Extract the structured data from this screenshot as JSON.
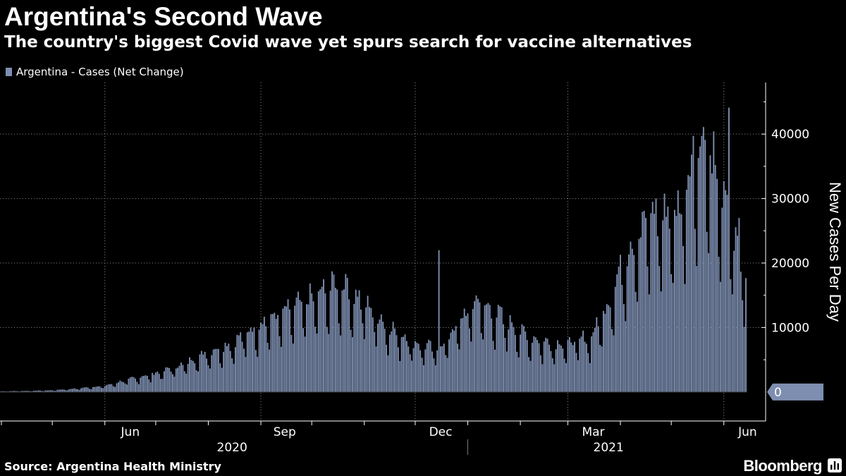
{
  "header": {
    "title": "Argentina's Second Wave",
    "subtitle": "The country's biggest Covid wave yet spurs search for vaccine alternatives"
  },
  "footer": {
    "source": "Source: Argentina Health Ministry",
    "brand": "Bloomberg",
    "brand_icon": "bloomberg-terminal-icon"
  },
  "colors": {
    "background": "#000000",
    "bar": "#7D8EB0",
    "grid": "#8a8a8a",
    "axis": "#ffffff",
    "text": "#ffffff"
  },
  "chart_data": {
    "type": "bar",
    "title": "Argentina's Second Wave",
    "subtitle": "The country's biggest Covid wave yet spurs search for vaccine alternatives",
    "xlabel": "",
    "ylabel": "New Cases Per Day",
    "ylim": [
      -4500,
      48000
    ],
    "yticks": [
      40000,
      30000,
      20000,
      10000
    ],
    "current_value_label": "0",
    "grid": "dotted vertical and horizontal",
    "legend_position": "top-left",
    "x_month_ticks": [
      "Jun",
      "Sep",
      "Dec",
      "Mar",
      "Jun"
    ],
    "x_year_labels": [
      "2020",
      "2021"
    ],
    "series": [
      {
        "name": "Argentina - Cases (Net Change)",
        "color": "#7D8EB0",
        "x_start": "2020-04-01",
        "x_end": "2021-06-14",
        "anchors": [
          [
            "2020-04-01",
            100
          ],
          [
            "2020-04-15",
            150
          ],
          [
            "2020-05-01",
            250
          ],
          [
            "2020-05-15",
            500
          ],
          [
            "2020-06-01",
            900
          ],
          [
            "2020-06-15",
            1800
          ],
          [
            "2020-07-01",
            2700
          ],
          [
            "2020-07-15",
            3800
          ],
          [
            "2020-08-01",
            5800
          ],
          [
            "2020-08-15",
            7000
          ],
          [
            "2020-09-01",
            10000
          ],
          [
            "2020-09-15",
            11500
          ],
          [
            "2020-10-01",
            13500
          ],
          [
            "2020-10-15",
            15500
          ],
          [
            "2020-11-01",
            13000
          ],
          [
            "2020-11-15",
            9500
          ],
          [
            "2020-12-01",
            7000
          ],
          [
            "2020-12-15",
            6200
          ],
          [
            "2021-01-05",
            13000
          ],
          [
            "2021-01-20",
            11000
          ],
          [
            "2021-02-05",
            8000
          ],
          [
            "2021-02-20",
            7000
          ],
          [
            "2021-03-01",
            7000
          ],
          [
            "2021-03-15",
            8000
          ],
          [
            "2021-03-25",
            13000
          ],
          [
            "2021-04-05",
            20000
          ],
          [
            "2021-04-15",
            25000
          ],
          [
            "2021-04-25",
            25500
          ],
          [
            "2021-05-05",
            26000
          ],
          [
            "2021-05-15",
            35000
          ],
          [
            "2021-05-25",
            33000
          ],
          [
            "2021-06-01",
            27000
          ],
          [
            "2021-06-10",
            20000
          ],
          [
            "2021-06-14",
            17000
          ]
        ],
        "peaks": [
          [
            "2020-10-21",
            18300
          ],
          [
            "2020-12-15",
            22000
          ],
          [
            "2021-01-08",
            13900
          ],
          [
            "2021-04-13",
            24000
          ],
          [
            "2021-04-20",
            29500
          ],
          [
            "2021-05-14",
            39700
          ],
          [
            "2021-05-20",
            41100
          ],
          [
            "2021-05-21",
            39100
          ],
          [
            "2021-05-27",
            35200
          ],
          [
            "2021-06-04",
            44100
          ],
          [
            "2021-06-10",
            27000
          ]
        ]
      }
    ]
  }
}
